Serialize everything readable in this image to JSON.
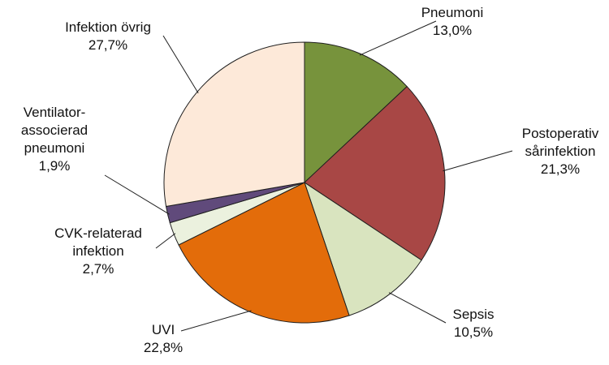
{
  "chart_data": {
    "type": "pie",
    "start": "12 o'clock",
    "direction": "clockwise",
    "legend": "none",
    "slices": [
      {
        "name": "Pneumoni",
        "label_lines": [
          "Pneumoni"
        ],
        "value": 13.0,
        "value_label": "13,0%",
        "color": "#77933C"
      },
      {
        "name": "Postoperativ sårinfektion",
        "label_lines": [
          "Postoperativ",
          "sårinfektion"
        ],
        "value": 21.3,
        "value_label": "21,3%",
        "color": "#A84745"
      },
      {
        "name": "Sepsis",
        "label_lines": [
          "Sepsis"
        ],
        "value": 10.5,
        "value_label": "10,5%",
        "color": "#D9E4BF"
      },
      {
        "name": "UVI",
        "label_lines": [
          "UVI"
        ],
        "value": 22.8,
        "value_label": "22,8%",
        "color": "#E36C0A"
      },
      {
        "name": "CVK-relaterad infektion",
        "label_lines": [
          "CVK-relaterad",
          "infektion"
        ],
        "value": 2.7,
        "value_label": "2,7%",
        "color": "#EBF1DE"
      },
      {
        "name": "Ventilator-associerad pneumoni",
        "label_lines": [
          "Ventilator-",
          "associerad",
          "pneumoni"
        ],
        "value": 1.9,
        "value_label": "1,9%",
        "color": "#604A7B"
      },
      {
        "name": "Infektion övrig",
        "label_lines": [
          "Infektion övrig"
        ],
        "value": 27.7,
        "value_label": "27,7%",
        "color": "#FDE9D9"
      }
    ]
  }
}
